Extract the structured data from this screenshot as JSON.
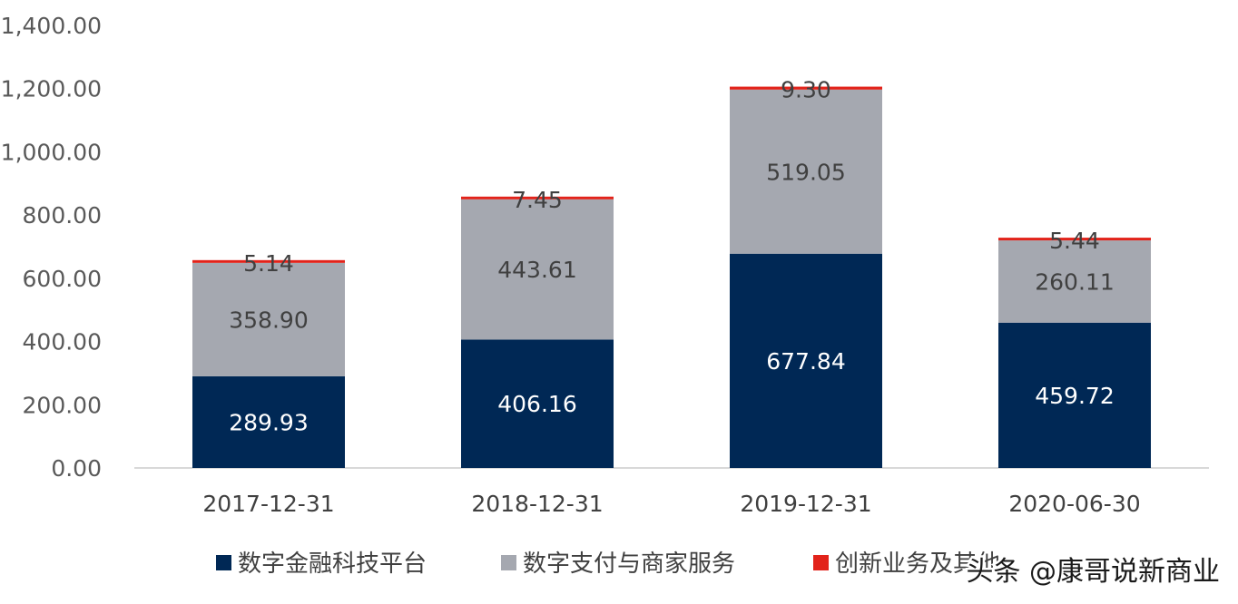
{
  "chart_data": {
    "type": "bar",
    "stacked": true,
    "categories": [
      "2017-12-31",
      "2018-12-31",
      "2019-12-31",
      "2020-06-30"
    ],
    "series": [
      {
        "name": "数字金融科技平台",
        "color": "#002855",
        "label_color": "#ffffff",
        "values": [
          289.93,
          406.16,
          677.84,
          459.72
        ],
        "labels": [
          "289.93",
          "406.16",
          "677.84",
          "459.72"
        ]
      },
      {
        "name": "数字支付与商家服务",
        "color": "#a5a8b0",
        "label_color": "#404040",
        "values": [
          358.9,
          443.61,
          519.05,
          260.11
        ],
        "labels": [
          "358.90",
          "443.61",
          "519.05",
          "260.11"
        ]
      },
      {
        "name": "创新业务及其他",
        "color": "#e2231a",
        "label_color": "#404040",
        "values": [
          5.14,
          7.45,
          9.3,
          5.44
        ],
        "labels": [
          "5.14",
          "7.45",
          "9.30",
          "5.44"
        ]
      }
    ],
    "yticks": [
      "0.00",
      "200.00",
      "400.00",
      "600.00",
      "800.00",
      "1,000.00",
      "1,200.00",
      "1,400.00"
    ],
    "ylim": [
      0,
      1400
    ],
    "title": "",
    "xlabel": "",
    "ylabel": "",
    "grid": false,
    "legend_position": "bottom"
  },
  "watermark": "头条 @康哥说新商业"
}
